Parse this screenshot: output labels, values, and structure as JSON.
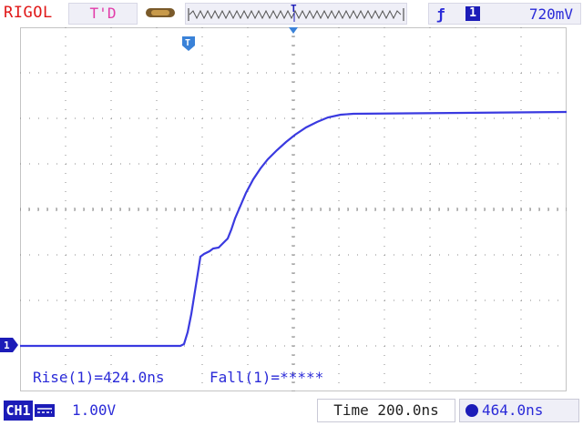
{
  "header": {
    "brand": "RIGOL",
    "trigger_status": "T'D",
    "trigger": {
      "edge_icon": "rising-edge-icon",
      "source": "1",
      "level": "720mV"
    }
  },
  "screen": {
    "trigger_position_marker": "T",
    "channel_marker": "1"
  },
  "measurements": {
    "rise": "Rise(1)=424.0ns",
    "fall": "Fall(1)=*****"
  },
  "footer": {
    "channel_label": "CH1",
    "channel_scale": "1.00V",
    "time_base": "Time 200.0ns",
    "trigger_offset": "464.0ns"
  },
  "colors": {
    "trace": "#3a3ae0",
    "brand": "#e01818",
    "trigger_status": "#e23aa8",
    "grid": "#8a8a8a",
    "accent": "#1c1cb8"
  }
}
